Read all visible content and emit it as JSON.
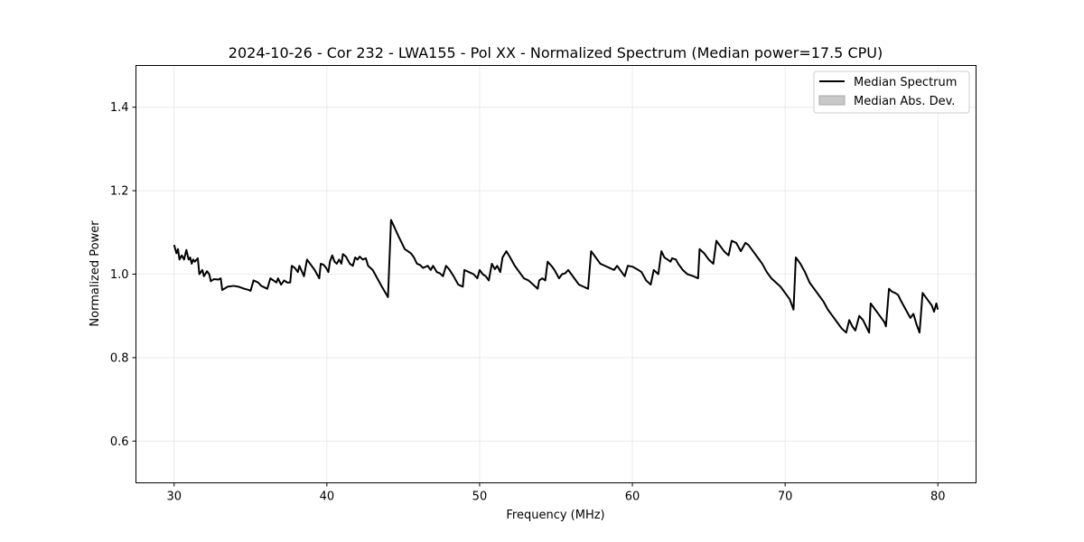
{
  "chart_data": {
    "type": "line",
    "title": "2024-10-26 - Cor 232 - LWA155 - Pol XX - Normalized Spectrum (Median power=17.5 CPU)",
    "xlabel": "Frequency (MHz)",
    "ylabel": "Normalized Power",
    "xlim": [
      27.5,
      82.5
    ],
    "ylim": [
      0.5,
      1.5
    ],
    "xticks": [
      30,
      40,
      50,
      60,
      70,
      80
    ],
    "xtick_labels": [
      "30",
      "40",
      "50",
      "60",
      "70",
      "80"
    ],
    "yticks": [
      0.6,
      0.8,
      1.0,
      1.2,
      1.4
    ],
    "ytick_labels": [
      "0.6",
      "0.8",
      "1.0",
      "1.2",
      "1.4"
    ],
    "grid": true,
    "legend_position": "top-right",
    "legend": [
      {
        "label": "Median Spectrum",
        "kind": "line",
        "color": "#000000"
      },
      {
        "label": "Median Abs. Dev.",
        "kind": "patch",
        "color": "#c8c8c8"
      }
    ],
    "series": [
      {
        "name": "Median Spectrum",
        "color": "#000000",
        "points": [
          [
            30.0,
            1.07
          ],
          [
            30.15,
            1.05
          ],
          [
            30.25,
            1.06
          ],
          [
            30.35,
            1.035
          ],
          [
            30.5,
            1.045
          ],
          [
            30.65,
            1.035
          ],
          [
            30.8,
            1.058
          ],
          [
            30.95,
            1.035
          ],
          [
            31.05,
            1.04
          ],
          [
            31.15,
            1.025
          ],
          [
            31.25,
            1.035
          ],
          [
            31.35,
            1.03
          ],
          [
            31.55,
            1.038
          ],
          [
            31.65,
            1.0
          ],
          [
            31.85,
            1.01
          ],
          [
            31.95,
            0.995
          ],
          [
            32.15,
            1.007
          ],
          [
            32.3,
            1.0
          ],
          [
            32.4,
            0.983
          ],
          [
            32.6,
            0.988
          ],
          [
            32.9,
            0.987
          ],
          [
            33.05,
            0.99
          ],
          [
            33.15,
            0.962
          ],
          [
            33.5,
            0.97
          ],
          [
            33.9,
            0.972
          ],
          [
            34.2,
            0.97
          ],
          [
            34.6,
            0.965
          ],
          [
            34.9,
            0.962
          ],
          [
            35.0,
            0.96
          ],
          [
            35.2,
            0.985
          ],
          [
            35.5,
            0.98
          ],
          [
            35.7,
            0.972
          ],
          [
            36.1,
            0.965
          ],
          [
            36.3,
            0.99
          ],
          [
            36.5,
            0.985
          ],
          [
            36.7,
            0.98
          ],
          [
            36.8,
            0.99
          ],
          [
            37.0,
            0.975
          ],
          [
            37.2,
            0.985
          ],
          [
            37.4,
            0.98
          ],
          [
            37.6,
            0.98
          ],
          [
            37.7,
            1.02
          ],
          [
            37.9,
            1.015
          ],
          [
            38.1,
            1.005
          ],
          [
            38.2,
            1.02
          ],
          [
            38.5,
            0.995
          ],
          [
            38.7,
            1.035
          ],
          [
            38.9,
            1.025
          ],
          [
            39.2,
            1.01
          ],
          [
            39.5,
            0.99
          ],
          [
            39.6,
            1.025
          ],
          [
            39.8,
            1.022
          ],
          [
            39.95,
            1.015
          ],
          [
            40.1,
            1.005
          ],
          [
            40.2,
            1.03
          ],
          [
            40.35,
            1.045
          ],
          [
            40.5,
            1.03
          ],
          [
            40.65,
            1.025
          ],
          [
            40.8,
            1.035
          ],
          [
            40.95,
            1.025
          ],
          [
            41.05,
            1.048
          ],
          [
            41.25,
            1.042
          ],
          [
            41.5,
            1.025
          ],
          [
            41.7,
            1.02
          ],
          [
            41.85,
            1.04
          ],
          [
            42.0,
            1.035
          ],
          [
            42.15,
            1.042
          ],
          [
            42.35,
            1.035
          ],
          [
            42.55,
            1.038
          ],
          [
            42.7,
            1.02
          ],
          [
            43.0,
            1.01
          ],
          [
            43.3,
            0.99
          ],
          [
            43.6,
            0.97
          ],
          [
            44.0,
            0.945
          ],
          [
            44.2,
            1.13
          ],
          [
            44.45,
            1.11
          ],
          [
            44.7,
            1.09
          ],
          [
            44.9,
            1.075
          ],
          [
            45.1,
            1.06
          ],
          [
            45.3,
            1.055
          ],
          [
            45.5,
            1.05
          ],
          [
            45.7,
            1.04
          ],
          [
            45.9,
            1.025
          ],
          [
            46.1,
            1.022
          ],
          [
            46.3,
            1.015
          ],
          [
            46.6,
            1.02
          ],
          [
            46.8,
            1.01
          ],
          [
            46.95,
            1.02
          ],
          [
            47.2,
            1.005
          ],
          [
            47.4,
            1.002
          ],
          [
            47.6,
            0.995
          ],
          [
            47.8,
            1.02
          ],
          [
            48.0,
            1.012
          ],
          [
            48.3,
            0.995
          ],
          [
            48.6,
            0.975
          ],
          [
            48.9,
            0.97
          ],
          [
            49.0,
            1.01
          ],
          [
            49.3,
            1.005
          ],
          [
            49.6,
            1.0
          ],
          [
            49.85,
            0.99
          ],
          [
            50.0,
            1.01
          ],
          [
            50.2,
            1.0
          ],
          [
            50.4,
            0.995
          ],
          [
            50.6,
            0.985
          ],
          [
            50.8,
            1.025
          ],
          [
            51.0,
            1.012
          ],
          [
            51.15,
            1.02
          ],
          [
            51.35,
            1.005
          ],
          [
            51.5,
            1.04
          ],
          [
            51.75,
            1.055
          ],
          [
            52.0,
            1.04
          ],
          [
            52.3,
            1.02
          ],
          [
            52.6,
            1.005
          ],
          [
            52.9,
            0.99
          ],
          [
            53.2,
            0.985
          ],
          [
            53.5,
            0.975
          ],
          [
            53.8,
            0.965
          ],
          [
            53.9,
            0.985
          ],
          [
            54.1,
            0.99
          ],
          [
            54.3,
            0.985
          ],
          [
            54.45,
            1.03
          ],
          [
            54.7,
            1.02
          ],
          [
            54.9,
            1.01
          ],
          [
            55.2,
            0.99
          ],
          [
            55.4,
            1.0
          ],
          [
            55.6,
            1.002
          ],
          [
            55.8,
            1.01
          ],
          [
            56.0,
            1.0
          ],
          [
            56.2,
            0.99
          ],
          [
            56.5,
            0.975
          ],
          [
            56.8,
            0.97
          ],
          [
            57.1,
            0.965
          ],
          [
            57.3,
            1.055
          ],
          [
            57.6,
            1.04
          ],
          [
            57.9,
            1.025
          ],
          [
            58.2,
            1.02
          ],
          [
            58.5,
            1.015
          ],
          [
            58.8,
            1.01
          ],
          [
            59.0,
            1.02
          ],
          [
            59.3,
            1.005
          ],
          [
            59.5,
            0.995
          ],
          [
            59.7,
            1.02
          ],
          [
            60.0,
            1.018
          ],
          [
            60.3,
            1.012
          ],
          [
            60.6,
            1.005
          ],
          [
            60.9,
            0.985
          ],
          [
            61.2,
            0.975
          ],
          [
            61.4,
            1.01
          ],
          [
            61.7,
            1.0
          ],
          [
            61.9,
            1.055
          ],
          [
            62.1,
            1.04
          ],
          [
            62.3,
            1.035
          ],
          [
            62.5,
            1.03
          ],
          [
            62.6,
            1.038
          ],
          [
            62.85,
            1.035
          ],
          [
            63.0,
            1.025
          ],
          [
            63.3,
            1.01
          ],
          [
            63.6,
            1.0
          ],
          [
            64.0,
            0.995
          ],
          [
            64.3,
            0.99
          ],
          [
            64.4,
            1.06
          ],
          [
            64.7,
            1.05
          ],
          [
            65.0,
            1.035
          ],
          [
            65.3,
            1.025
          ],
          [
            65.5,
            1.08
          ],
          [
            65.7,
            1.07
          ],
          [
            66.0,
            1.055
          ],
          [
            66.3,
            1.045
          ],
          [
            66.5,
            1.08
          ],
          [
            66.8,
            1.075
          ],
          [
            67.1,
            1.055
          ],
          [
            67.4,
            1.075
          ],
          [
            67.6,
            1.07
          ],
          [
            67.9,
            1.055
          ],
          [
            68.2,
            1.04
          ],
          [
            68.5,
            1.025
          ],
          [
            68.8,
            1.005
          ],
          [
            69.1,
            0.99
          ],
          [
            69.4,
            0.98
          ],
          [
            69.7,
            0.97
          ],
          [
            70.0,
            0.955
          ],
          [
            70.3,
            0.94
          ],
          [
            70.55,
            0.915
          ],
          [
            70.7,
            1.04
          ],
          [
            71.0,
            1.025
          ],
          [
            71.3,
            1.005
          ],
          [
            71.6,
            0.98
          ],
          [
            71.9,
            0.965
          ],
          [
            72.2,
            0.95
          ],
          [
            72.5,
            0.935
          ],
          [
            72.8,
            0.915
          ],
          [
            73.1,
            0.9
          ],
          [
            73.4,
            0.885
          ],
          [
            73.7,
            0.87
          ],
          [
            74.0,
            0.86
          ],
          [
            74.2,
            0.89
          ],
          [
            74.4,
            0.875
          ],
          [
            74.6,
            0.865
          ],
          [
            74.85,
            0.9
          ],
          [
            75.1,
            0.89
          ],
          [
            75.3,
            0.875
          ],
          [
            75.5,
            0.86
          ],
          [
            75.6,
            0.93
          ],
          [
            75.9,
            0.915
          ],
          [
            76.2,
            0.9
          ],
          [
            76.5,
            0.885
          ],
          [
            76.6,
            0.875
          ],
          [
            76.8,
            0.965
          ],
          [
            77.0,
            0.958
          ],
          [
            77.2,
            0.955
          ],
          [
            77.4,
            0.95
          ],
          [
            77.6,
            0.935
          ],
          [
            77.9,
            0.915
          ],
          [
            78.2,
            0.895
          ],
          [
            78.4,
            0.905
          ],
          [
            78.6,
            0.88
          ],
          [
            78.8,
            0.86
          ],
          [
            79.0,
            0.955
          ],
          [
            79.3,
            0.94
          ],
          [
            79.6,
            0.925
          ],
          [
            79.75,
            0.91
          ],
          [
            79.9,
            0.93
          ],
          [
            80.0,
            0.915
          ]
        ]
      }
    ]
  }
}
